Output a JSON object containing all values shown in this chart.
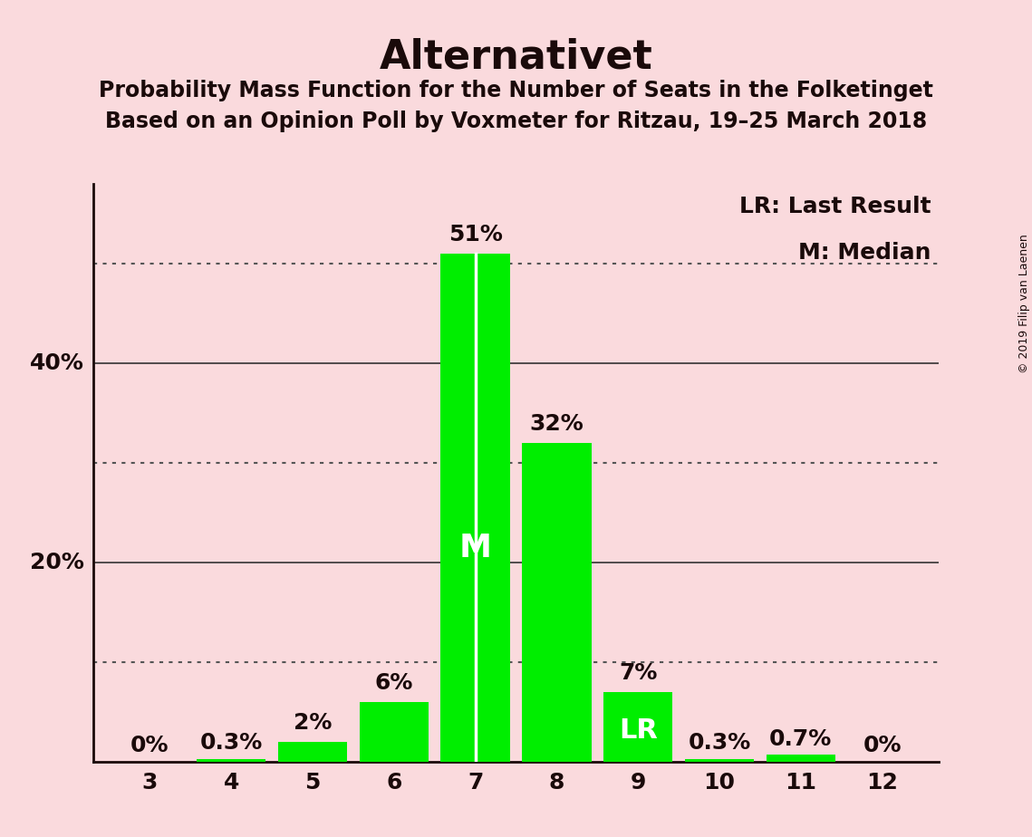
{
  "title": "Alternativet",
  "subtitle1": "Probability Mass Function for the Number of Seats in the Folketinget",
  "subtitle2": "Based on an Opinion Poll by Voxmeter for Ritzau, 19–25 March 2018",
  "copyright": "© 2019 Filip van Laenen",
  "seats": [
    3,
    4,
    5,
    6,
    7,
    8,
    9,
    10,
    11,
    12
  ],
  "probabilities": [
    0.0,
    0.3,
    2.0,
    6.0,
    51.0,
    32.0,
    7.0,
    0.3,
    0.7,
    0.0
  ],
  "bar_labels": [
    "0%",
    "0.3%",
    "2%",
    "6%",
    "51%",
    "32%",
    "7%",
    "0.3%",
    "0.7%",
    "0%"
  ],
  "bar_color": "#00ee00",
  "background_color": "#fadadd",
  "text_color": "#1a0a0a",
  "median_seat": 7,
  "lr_seat": 9,
  "median_label": "M",
  "lr_label": "LR",
  "legend_lr": "LR: Last Result",
  "legend_m": "M: Median",
  "ylim": [
    0,
    58
  ],
  "title_fontsize": 32,
  "subtitle_fontsize": 17,
  "bar_label_fontsize": 18,
  "axis_tick_fontsize": 18,
  "inside_label_fontsize": 26,
  "legend_fontsize": 18,
  "copyright_fontsize": 9,
  "solid_lines": [
    20,
    40
  ],
  "dotted_lines": [
    10,
    30,
    50
  ]
}
